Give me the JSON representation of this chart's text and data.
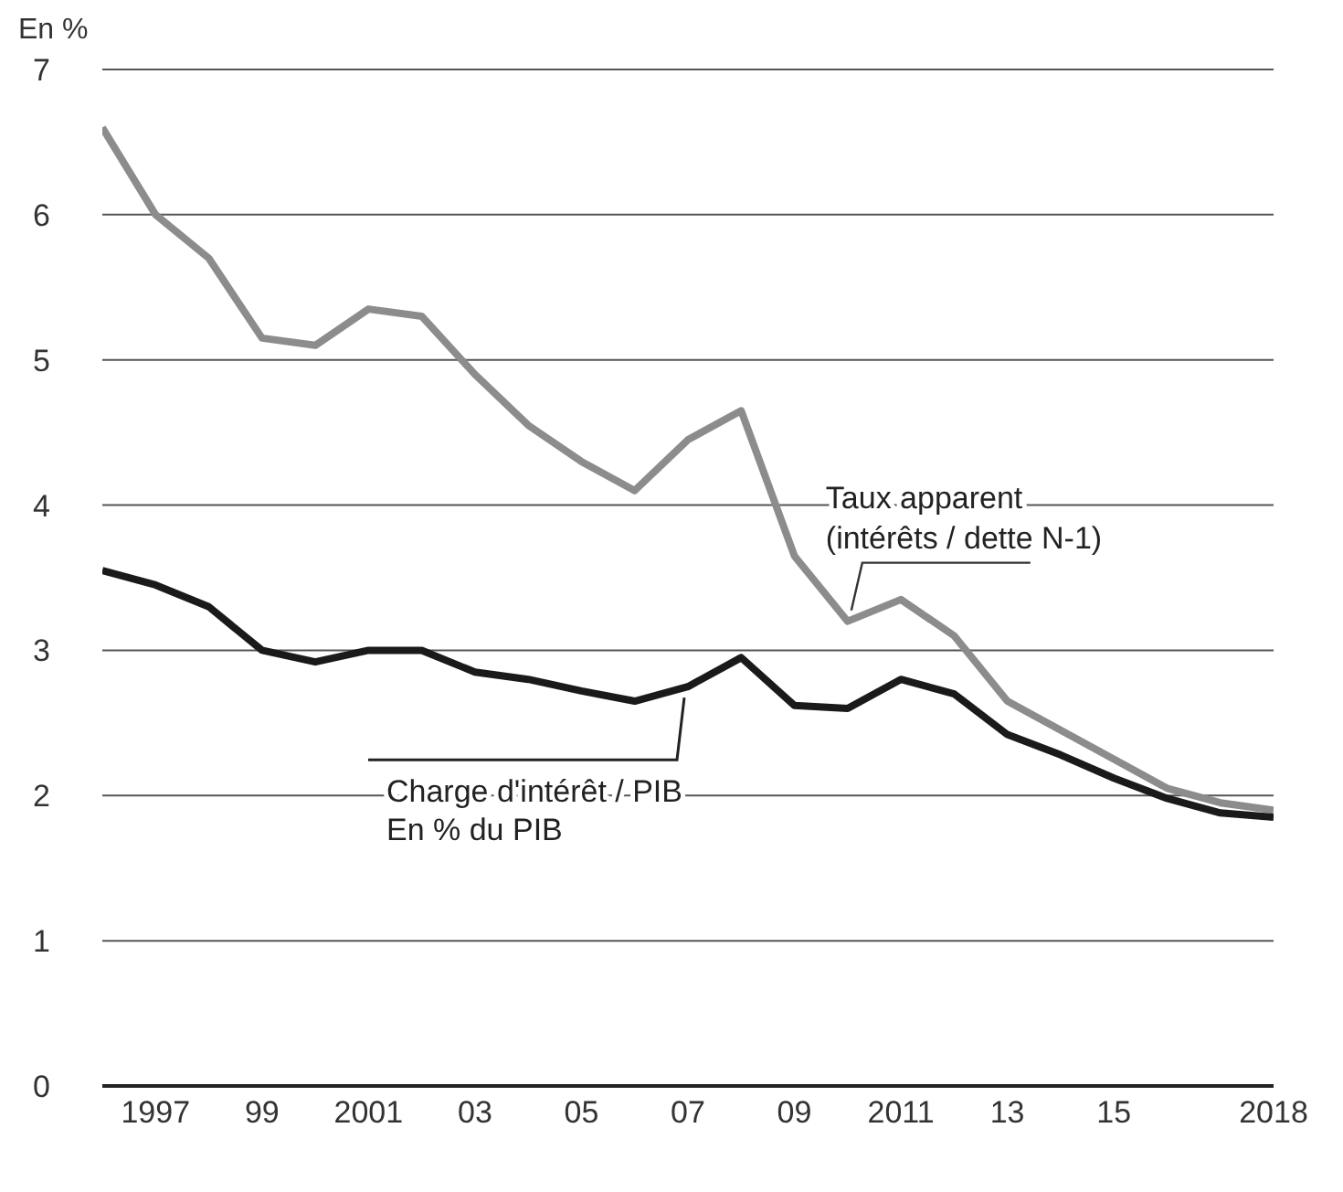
{
  "chart_data": {
    "type": "line",
    "ylabel": "En %",
    "x": [
      1996,
      1997,
      1998,
      1999,
      2000,
      2001,
      2002,
      2003,
      2004,
      2005,
      2006,
      2007,
      2008,
      2009,
      2010,
      2011,
      2012,
      2013,
      2014,
      2015,
      2016,
      2017,
      2018
    ],
    "series": [
      {
        "name": "Taux apparent (intérêts / dette N-1)",
        "color": "#8c8c8c",
        "values": [
          6.6,
          6.0,
          5.7,
          5.15,
          5.1,
          5.35,
          5.3,
          4.9,
          4.55,
          4.3,
          4.1,
          4.45,
          4.65,
          3.65,
          3.2,
          3.35,
          3.1,
          2.65,
          2.45,
          2.25,
          2.05,
          1.95,
          1.9
        ]
      },
      {
        "name": "Charge d'intérêt / PIB",
        "color": "#1a1a1a",
        "values": [
          3.55,
          3.45,
          3.3,
          3.0,
          2.92,
          3.0,
          3.0,
          2.85,
          2.8,
          2.72,
          2.65,
          2.75,
          2.95,
          2.62,
          2.6,
          2.8,
          2.7,
          2.42,
          2.28,
          2.12,
          1.98,
          1.88,
          1.85
        ]
      }
    ],
    "annotations": [
      "En % du PIB"
    ],
    "xlim": [
      1996,
      2018
    ],
    "xticks": [
      {
        "value": 1997,
        "label": "1997"
      },
      {
        "value": 1999,
        "label": "99"
      },
      {
        "value": 2001,
        "label": "2001"
      },
      {
        "value": 2003,
        "label": "03"
      },
      {
        "value": 2005,
        "label": "05"
      },
      {
        "value": 2007,
        "label": "07"
      },
      {
        "value": 2009,
        "label": "09"
      },
      {
        "value": 2011,
        "label": "2011"
      },
      {
        "value": 2013,
        "label": "13"
      },
      {
        "value": 2015,
        "label": "15"
      },
      {
        "value": 2018,
        "label": "2018"
      }
    ],
    "ylim": [
      0,
      7
    ],
    "yticks": [
      0,
      1,
      2,
      3,
      4,
      5,
      6,
      7
    ],
    "grid": "y",
    "legend": false,
    "marker": "none",
    "line_style": "solid"
  }
}
